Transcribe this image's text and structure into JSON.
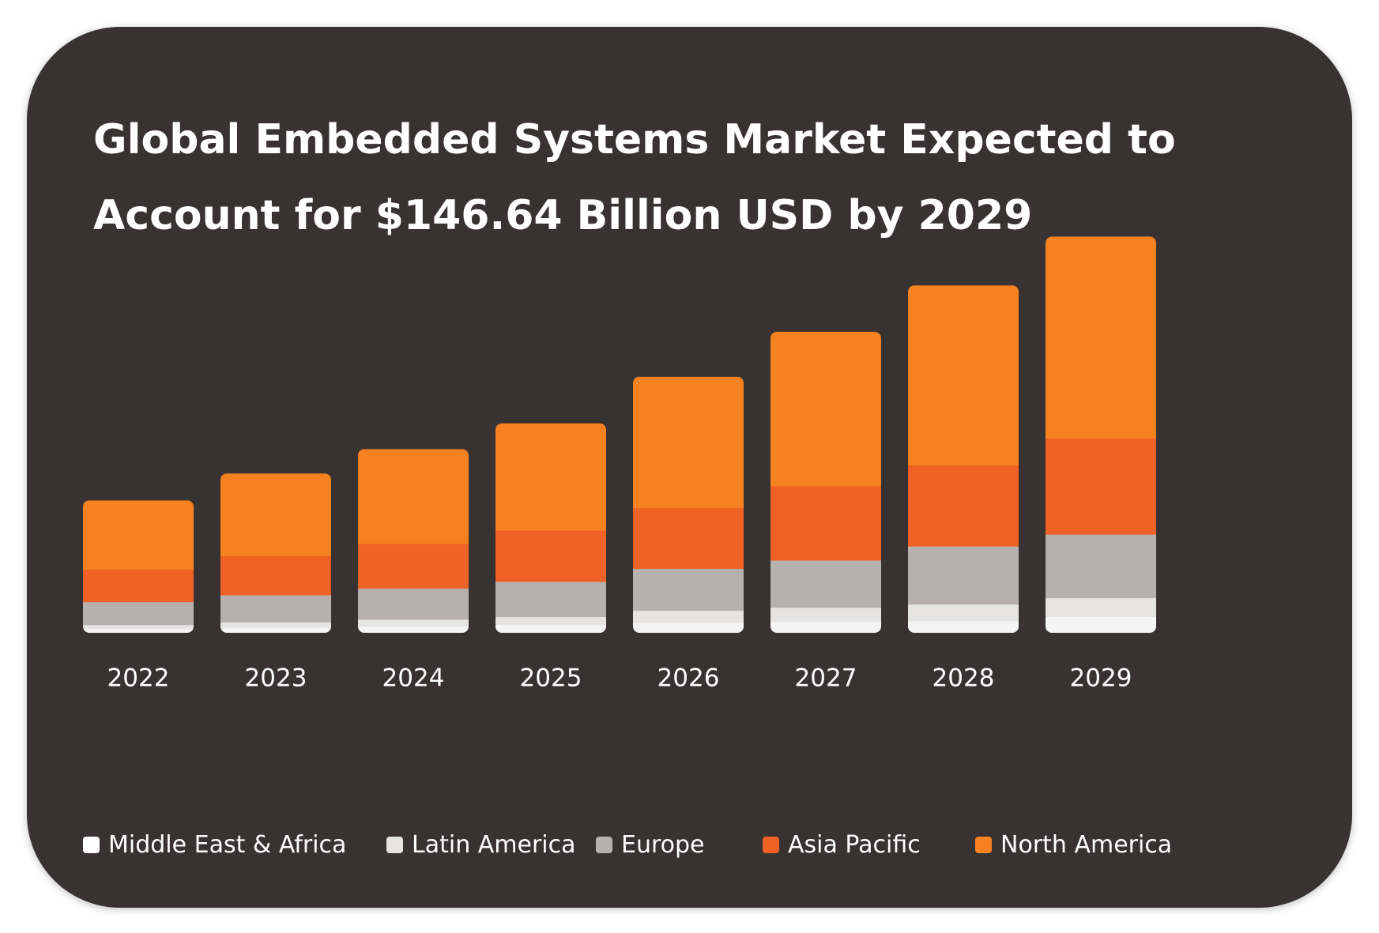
{
  "chart_data": {
    "type": "bar",
    "stacked": true,
    "title": "Global Embedded Systems Market Expected to Account for $146.64 Billion USD by 2029",
    "categories": [
      "2022",
      "2023",
      "2024",
      "2025",
      "2026",
      "2027",
      "2028",
      "2029"
    ],
    "series": [
      {
        "name": "Middle East & Africa",
        "color": "#f4f4f4",
        "values": [
          1.5,
          2.0,
          2.5,
          3.0,
          3.8,
          4.2,
          4.4,
          6.0
        ]
      },
      {
        "name": "Latin America",
        "color": "#e6e4e3",
        "values": [
          1.5,
          2.0,
          2.5,
          3.0,
          4.5,
          5.2,
          6.2,
          7.0
        ]
      },
      {
        "name": "Europe",
        "color": "#b6b0ae",
        "values": [
          8.5,
          10.0,
          11.5,
          13.0,
          15.5,
          17.5,
          21.5,
          23.5
        ]
      },
      {
        "name": "Asia Pacific",
        "color": "#ef6124",
        "values": [
          12.0,
          14.5,
          16.5,
          19.0,
          22.5,
          27.5,
          30.0,
          35.5
        ]
      },
      {
        "name": "North America",
        "color": "#f58120",
        "values": [
          25.5,
          30.5,
          35.0,
          39.5,
          48.5,
          57.0,
          66.5,
          74.64
        ]
      }
    ],
    "ylim": [
      0,
      150
    ],
    "grid": false,
    "legend_position": "bottom"
  }
}
